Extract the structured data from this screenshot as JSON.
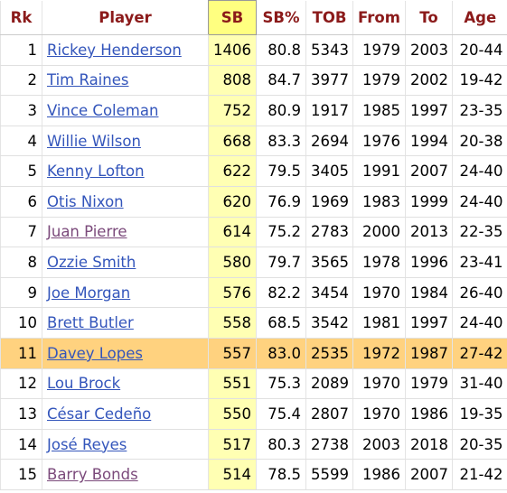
{
  "table": {
    "headers": [
      "Rk",
      "Player",
      "SB",
      "SB%",
      "TOB",
      "From",
      "To",
      "Age"
    ],
    "rows": [
      [
        "1",
        "Rickey Henderson",
        "1406",
        "80.8",
        "5343",
        "1979",
        "2003",
        "20-44"
      ],
      [
        "2",
        "Tim Raines",
        "808",
        "84.7",
        "3977",
        "1979",
        "2002",
        "19-42"
      ],
      [
        "3",
        "Vince Coleman",
        "752",
        "80.9",
        "1917",
        "1985",
        "1997",
        "23-35"
      ],
      [
        "4",
        "Willie Wilson",
        "668",
        "83.3",
        "2694",
        "1976",
        "1994",
        "20-38"
      ],
      [
        "5",
        "Kenny Lofton",
        "622",
        "79.5",
        "3405",
        "1991",
        "2007",
        "24-40"
      ],
      [
        "6",
        "Otis Nixon",
        "620",
        "76.9",
        "1969",
        "1983",
        "1999",
        "24-40"
      ],
      [
        "7",
        "Juan Pierre",
        "614",
        "75.2",
        "2783",
        "2000",
        "2013",
        "22-35"
      ],
      [
        "8",
        "Ozzie Smith",
        "580",
        "79.7",
        "3565",
        "1978",
        "1996",
        "23-41"
      ],
      [
        "9",
        "Joe Morgan",
        "576",
        "82.2",
        "3454",
        "1970",
        "1984",
        "26-40"
      ],
      [
        "10",
        "Brett Butler",
        "558",
        "68.5",
        "3542",
        "1981",
        "1997",
        "24-40"
      ],
      [
        "11",
        "Davey Lopes",
        "557",
        "83.0",
        "2535",
        "1972",
        "1987",
        "27-42"
      ],
      [
        "12",
        "Lou Brock",
        "551",
        "75.3",
        "2089",
        "1970",
        "1979",
        "31-40"
      ],
      [
        "13",
        "César Cedeño",
        "550",
        "75.4",
        "2807",
        "1970",
        "1986",
        "19-35"
      ],
      [
        "14",
        "José Reyes",
        "517",
        "80.3",
        "2738",
        "2003",
        "2018",
        "20-35"
      ],
      [
        "15",
        "Barry Bonds",
        "514",
        "78.5",
        "5599",
        "1986",
        "2007",
        "21-42"
      ]
    ]
  }
}
